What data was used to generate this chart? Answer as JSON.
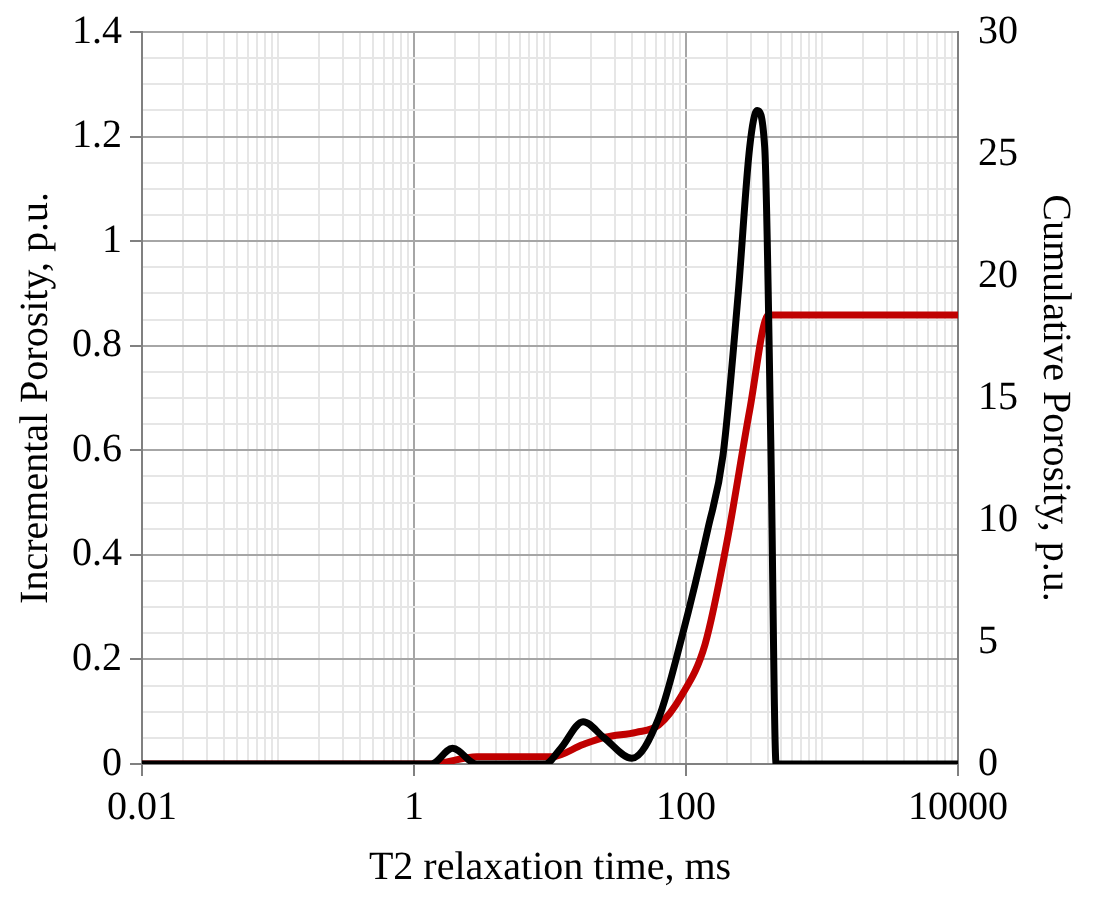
{
  "chart_data": {
    "type": "line",
    "xlabel": "T2 relaxation time, ms",
    "ylabel": "Incremental Porosity, p.u.",
    "y2label": "Cumulative Porosity, p.u.",
    "log": "x",
    "grid": true,
    "marker": "none",
    "line_style": "solid",
    "xlim": [
      0.01,
      10000
    ],
    "xticks": [
      0.01,
      {
        "value": 0.02,
        "label": null
      },
      {
        "value": 0.03,
        "label": null
      },
      {
        "value": 0.04,
        "label": null
      },
      {
        "value": 0.05,
        "label": null
      },
      {
        "value": 0.06,
        "label": null
      },
      {
        "value": 0.07,
        "label": null
      },
      {
        "value": 0.08,
        "label": null
      },
      {
        "value": 0.09,
        "label": null
      },
      {
        "value": 0.1,
        "label": null
      },
      {
        "value": 0.2,
        "label": null
      },
      {
        "value": 0.3,
        "label": null
      },
      {
        "value": 0.4,
        "label": null
      },
      {
        "value": 0.5,
        "label": null
      },
      {
        "value": 0.6,
        "label": null
      },
      {
        "value": 0.7,
        "label": null
      },
      {
        "value": 0.8,
        "label": null
      },
      {
        "value": 0.9,
        "label": null
      },
      1,
      {
        "value": 2,
        "label": null
      },
      {
        "value": 3,
        "label": null
      },
      {
        "value": 4,
        "label": null
      },
      {
        "value": 5,
        "label": null
      },
      {
        "value": 6,
        "label": null
      },
      {
        "value": 7,
        "label": null
      },
      {
        "value": 8,
        "label": null
      },
      {
        "value": 9,
        "label": null
      },
      {
        "value": 10,
        "label": null
      },
      {
        "value": 20,
        "label": null
      },
      {
        "value": 30,
        "label": null
      },
      {
        "value": 40,
        "label": null
      },
      {
        "value": 50,
        "label": null
      },
      {
        "value": 60,
        "label": null
      },
      {
        "value": 70,
        "label": null
      },
      {
        "value": 80,
        "label": null
      },
      {
        "value": 90,
        "label": null
      },
      100,
      {
        "value": 200,
        "label": null
      },
      {
        "value": 300,
        "label": null
      },
      {
        "value": 400,
        "label": null
      },
      {
        "value": 500,
        "label": null
      },
      {
        "value": 600,
        "label": null
      },
      {
        "value": 700,
        "label": null
      },
      {
        "value": 800,
        "label": null
      },
      {
        "value": 900,
        "label": null
      },
      {
        "value": 1000,
        "label": null
      },
      {
        "value": 2000,
        "label": null
      },
      {
        "value": 3000,
        "label": null
      },
      {
        "value": 4000,
        "label": null
      },
      {
        "value": 5000,
        "label": null
      },
      {
        "value": 6000,
        "label": null
      },
      {
        "value": 7000,
        "label": null
      },
      {
        "value": 8000,
        "label": null
      },
      {
        "value": 9000,
        "label": null
      },
      10000
    ],
    "ylim": [
      0,
      1.4
    ],
    "yticks": [
      0,
      {
        "value": 0.05,
        "label": null
      },
      {
        "value": 0.1,
        "label": null
      },
      {
        "value": 0.15,
        "label": null
      },
      0.2,
      {
        "value": 0.25,
        "label": null
      },
      {
        "value": 0.3,
        "label": null
      },
      {
        "value": 0.35,
        "label": null
      },
      0.4,
      {
        "value": 0.45,
        "label": null
      },
      {
        "value": 0.5,
        "label": null
      },
      {
        "value": 0.55,
        "label": null
      },
      0.6,
      {
        "value": 0.65,
        "label": null
      },
      {
        "value": 0.7,
        "label": null
      },
      {
        "value": 0.75,
        "label": null
      },
      0.8,
      {
        "value": 0.85,
        "label": null
      },
      {
        "value": 0.9,
        "label": null
      },
      {
        "value": 0.95,
        "label": null
      },
      {
        "value": 1,
        "label": "1"
      },
      {
        "value": 1.05,
        "label": null
      },
      {
        "value": 1.1,
        "label": null
      },
      {
        "value": 1.15,
        "label": null
      },
      1.2,
      {
        "value": 1.25,
        "label": null
      },
      {
        "value": 1.3,
        "label": null
      },
      {
        "value": 1.35,
        "label": null
      },
      1.4
    ],
    "y2lim": [
      0,
      30
    ],
    "y2ticks": [
      0,
      5,
      10,
      15,
      20,
      25,
      30
    ],
    "series": [
      {
        "color": "#000000",
        "x": [
          0.01,
          1,
          1.34,
          1.92,
          2.9,
          9.2,
          12,
          17.5,
          25,
          40,
          63,
          92.6,
          145,
          187,
          242,
          294,
          334,
          379,
          420,
          460,
          10000
        ],
        "values": [
          0,
          0,
          0,
          0.03,
          0,
          0,
          0.03,
          0.081,
          0.05,
          0.011,
          0.088,
          0.24,
          0.45,
          0.59,
          0.9,
          1.18,
          1.25,
          1.18,
          0.62,
          0,
          0
        ]
      },
      {
        "color": "#c00000",
        "axis": "y2",
        "x": [
          0.01,
          1.34,
          2.9,
          10.4,
          17.5,
          25.6,
          43,
          63,
          92.6,
          138,
          200,
          294,
          405,
          10000
        ],
        "values": [
          0,
          0,
          0.3,
          0.3,
          0.8,
          1.1,
          1.3,
          1.6,
          2.8,
          4.9,
          9.1,
          14.5,
          18.4,
          18.4
        ]
      }
    ]
  }
}
